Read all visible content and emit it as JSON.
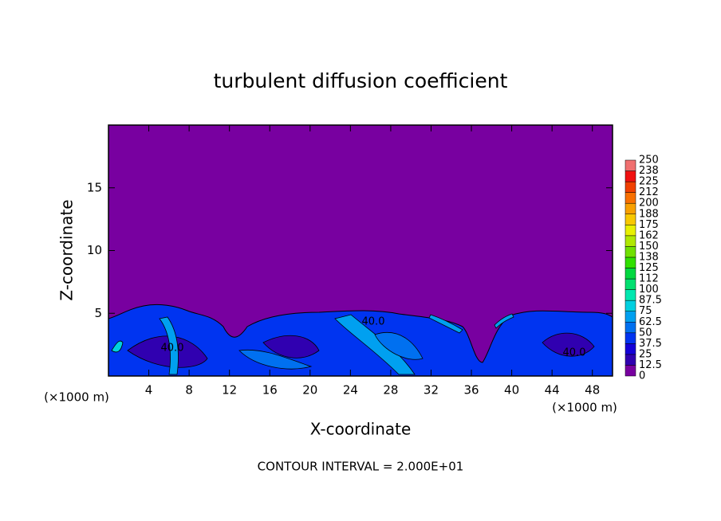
{
  "chart_data": {
    "type": "contour",
    "title": "turbulent diffusion coefficient",
    "xlabel": "X-coordinate",
    "ylabel": "Z-coordinate",
    "x_unit": "(×1000 m)",
    "xlim": [
      0,
      50
    ],
    "ylim": [
      0,
      20
    ],
    "xticks": [
      4,
      8,
      12,
      16,
      20,
      24,
      28,
      32,
      36,
      40,
      44,
      48
    ],
    "yticks": [
      5,
      10,
      15
    ],
    "contour_labels": [
      {
        "value": 40,
        "label": "40.0"
      },
      {
        "value": 40,
        "label": "40.0"
      },
      {
        "value": 40,
        "label": "40.0"
      }
    ],
    "note": "CONTOUR INTERVAL = 2.000E+01",
    "colorbar": {
      "levels": [
        0,
        12.5,
        25,
        37.5,
        50,
        62.5,
        75,
        87.5,
        100,
        112,
        125,
        138,
        150,
        162,
        175,
        188,
        200,
        212,
        225,
        238,
        250
      ],
      "colors": [
        "#7800a0",
        "#3000b0",
        "#1400d8",
        "#0034f0",
        "#0070f0",
        "#00a0f0",
        "#00d0e0",
        "#00e8b0",
        "#00e070",
        "#00d840",
        "#30e000",
        "#70e000",
        "#b0e800",
        "#e8f000",
        "#f8c800",
        "#f8a000",
        "#f87000",
        "#f04000",
        "#f01010",
        "#f07070"
      ]
    }
  }
}
